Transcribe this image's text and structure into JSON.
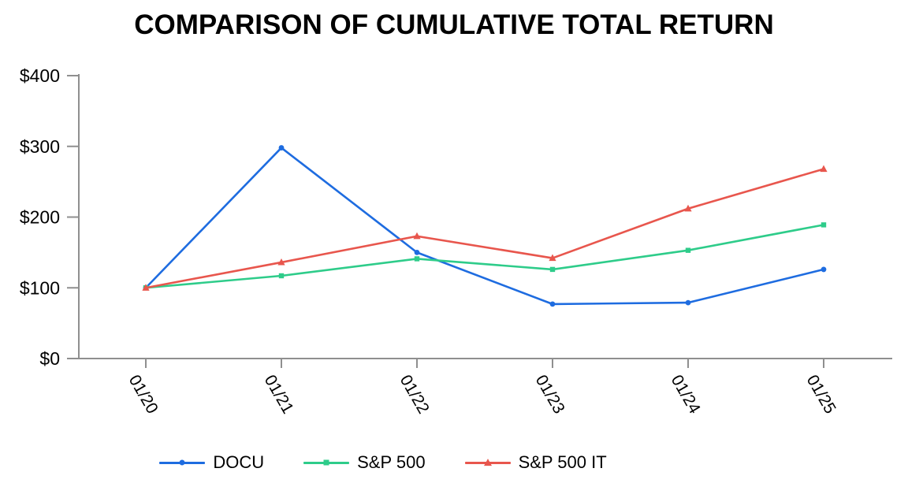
{
  "title": "COMPARISON OF CUMULATIVE TOTAL RETURN",
  "axis_color": "#8f8f8f",
  "text_color": "#000000",
  "chart_data": {
    "type": "line",
    "title": "COMPARISON OF CUMULATIVE TOTAL RETURN",
    "categories": [
      "01/20",
      "01/21",
      "01/22",
      "01/23",
      "01/24",
      "01/25"
    ],
    "series": [
      {
        "name": "DOCU",
        "color": "#1e6ce0",
        "marker": "circle",
        "values": [
          100,
          298,
          150,
          77,
          79,
          126
        ]
      },
      {
        "name": "S&P 500",
        "color": "#2ecc8a",
        "marker": "square",
        "values": [
          100,
          117,
          141,
          126,
          153,
          189
        ]
      },
      {
        "name": "S&P 500 IT",
        "color": "#e8564d",
        "marker": "triangle",
        "values": [
          100,
          136,
          173,
          142,
          212,
          268
        ]
      }
    ],
    "y_ticks": [
      {
        "label": "$0",
        "value": 0
      },
      {
        "label": "$100",
        "value": 100
      },
      {
        "label": "$200",
        "value": 200
      },
      {
        "label": "$300",
        "value": 300
      },
      {
        "label": "$400",
        "value": 400
      }
    ],
    "ylim": [
      0,
      400
    ],
    "xlabel": "",
    "ylabel": "",
    "grid": false,
    "legend_position": "bottom"
  }
}
